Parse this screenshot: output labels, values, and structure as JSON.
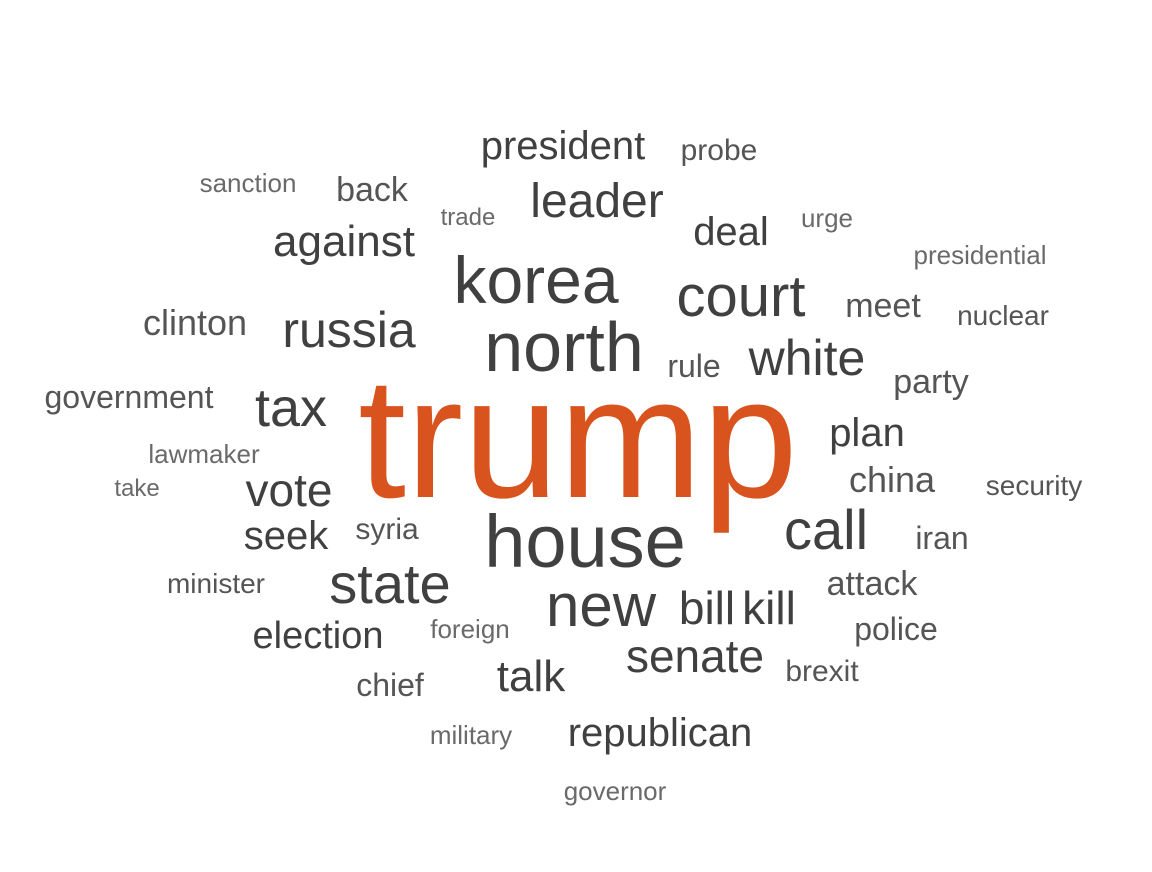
{
  "word_cloud": {
    "colors": {
      "highlight": "#d9531e",
      "dark": "#404040",
      "medium": "#555555",
      "light": "#6a6a6a"
    },
    "words": [
      {
        "text": "trump",
        "tone": "highlight"
      },
      {
        "text": "house",
        "tone": "dark"
      },
      {
        "text": "north",
        "tone": "dark"
      },
      {
        "text": "korea",
        "tone": "dark"
      },
      {
        "text": "court",
        "tone": "dark"
      },
      {
        "text": "new",
        "tone": "dark"
      },
      {
        "text": "state",
        "tone": "dark"
      },
      {
        "text": "call",
        "tone": "dark"
      },
      {
        "text": "tax",
        "tone": "dark"
      },
      {
        "text": "russia",
        "tone": "dark"
      },
      {
        "text": "white",
        "tone": "dark"
      },
      {
        "text": "leader",
        "tone": "dark"
      },
      {
        "text": "senate",
        "tone": "dark"
      },
      {
        "text": "vote",
        "tone": "dark"
      },
      {
        "text": "bill",
        "tone": "dark"
      },
      {
        "text": "kill",
        "tone": "dark"
      },
      {
        "text": "against",
        "tone": "dark"
      },
      {
        "text": "talk",
        "tone": "dark"
      },
      {
        "text": "republican",
        "tone": "dark"
      },
      {
        "text": "president",
        "tone": "dark"
      },
      {
        "text": "seek",
        "tone": "dark"
      },
      {
        "text": "election",
        "tone": "dark"
      },
      {
        "text": "deal",
        "tone": "dark"
      },
      {
        "text": "plan",
        "tone": "dark"
      },
      {
        "text": "china",
        "tone": "medium"
      },
      {
        "text": "meet",
        "tone": "medium"
      },
      {
        "text": "clinton",
        "tone": "medium"
      },
      {
        "text": "back",
        "tone": "medium"
      },
      {
        "text": "party",
        "tone": "medium"
      },
      {
        "text": "attack",
        "tone": "medium"
      },
      {
        "text": "police",
        "tone": "medium"
      },
      {
        "text": "rule",
        "tone": "medium"
      },
      {
        "text": "government",
        "tone": "medium"
      },
      {
        "text": "iran",
        "tone": "medium"
      },
      {
        "text": "chief",
        "tone": "medium"
      },
      {
        "text": "syria",
        "tone": "medium"
      },
      {
        "text": "brexit",
        "tone": "medium"
      },
      {
        "text": "probe",
        "tone": "medium"
      },
      {
        "text": "minister",
        "tone": "medium"
      },
      {
        "text": "nuclear",
        "tone": "medium"
      },
      {
        "text": "security",
        "tone": "medium"
      },
      {
        "text": "sanction",
        "tone": "light"
      },
      {
        "text": "lawmaker",
        "tone": "light"
      },
      {
        "text": "military",
        "tone": "light"
      },
      {
        "text": "presidential",
        "tone": "light"
      },
      {
        "text": "urge",
        "tone": "light"
      },
      {
        "text": "foreign",
        "tone": "light"
      },
      {
        "text": "governor",
        "tone": "light"
      },
      {
        "text": "take",
        "tone": "light"
      },
      {
        "text": "trade",
        "tone": "light"
      }
    ]
  }
}
